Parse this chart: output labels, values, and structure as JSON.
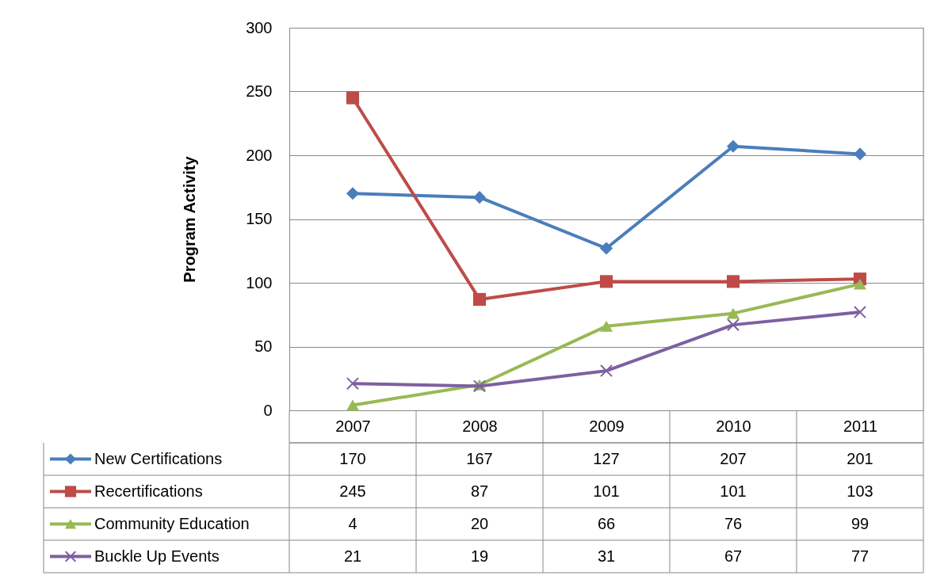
{
  "chart_data": {
    "type": "line",
    "ylabel": "Program Activity",
    "categories": [
      "2007",
      "2008",
      "2009",
      "2010",
      "2011"
    ],
    "series": [
      {
        "name": "New Certifications",
        "color": "#4a7ebb",
        "marker": "diamond",
        "values": [
          170,
          167,
          127,
          207,
          201
        ]
      },
      {
        "name": "Recertifications",
        "color": "#be4b48",
        "marker": "square",
        "values": [
          245,
          87,
          101,
          101,
          103
        ]
      },
      {
        "name": "Community Education",
        "color": "#98b954",
        "marker": "triangle",
        "values": [
          4,
          20,
          66,
          76,
          99
        ]
      },
      {
        "name": "Buckle Up Events",
        "color": "#7d60a0",
        "marker": "cross",
        "values": [
          21,
          19,
          31,
          67,
          77
        ]
      }
    ],
    "ylim": [
      0,
      300
    ],
    "yticks": [
      0,
      50,
      100,
      150,
      200,
      250,
      300
    ],
    "grid": "y",
    "legend": "bottom left",
    "data_labels": true,
    "line_style": "solid"
  }
}
